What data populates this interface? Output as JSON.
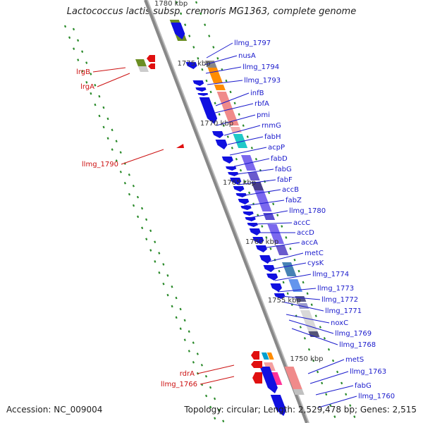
{
  "title": "Lactococcus lactis subsp. cremoris MG1363, complete genome",
  "footer": {
    "accession": "Accession: NC_009004",
    "summary": "Topology: circular; Length: 2,529,478 bp; Genes: 2,515"
  },
  "colors": {
    "forward_arrow": "#1010e0",
    "reverse_arrow": "#e01010",
    "forward_label": "#1a1acc",
    "reverse_label": "#cc1111",
    "backbone": "#888888",
    "tick": "#2a8a2a"
  },
  "scale_labels": [
    "1780 kbp",
    "1775 kbp",
    "1770 kbp",
    "1765 kbp",
    "1760 kbp",
    "1755 kbp",
    "1750 kbp"
  ],
  "forward_labels": [
    "llmg_1797",
    "nusA",
    "llmg_1794",
    "llmg_1793",
    "infB",
    "rbfA",
    "pmi",
    "rnmG",
    "fabH",
    "acpP",
    "fabD",
    "fabG",
    "fabF",
    "accB",
    "fabZ",
    "llmg_1780",
    "accC",
    "accD",
    "accA",
    "metC",
    "cysK",
    "llmg_1774",
    "llmg_1773",
    "llmg_1772",
    "llmg_1771",
    "noxC",
    "llmg_1769",
    "llmg_1768",
    "metS",
    "llmg_1763",
    "fabG",
    "llmg_1760"
  ],
  "reverse_labels": [
    "lrgB",
    "lrgA",
    "llmg_1790",
    "rdrA",
    "llmg_1766"
  ]
}
